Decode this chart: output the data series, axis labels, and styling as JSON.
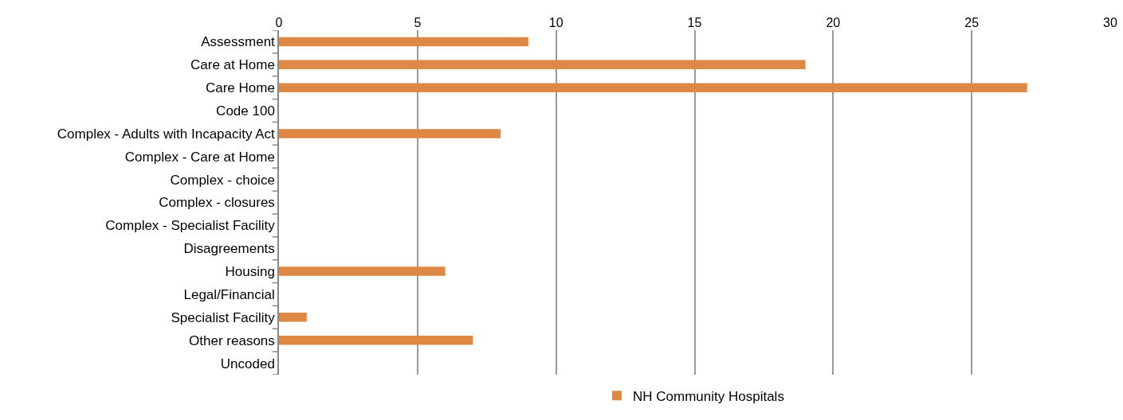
{
  "chart_data": {
    "type": "bar",
    "orientation": "horizontal",
    "categories": [
      "Assessment",
      "Care at Home",
      "Care Home",
      "Code 100",
      "Complex - Adults with Incapacity Act",
      "Complex - Care at Home",
      "Complex - choice",
      "Complex - closures",
      "Complex - Specialist Facility",
      "Disagreements",
      "Housing",
      "Legal/Financial",
      "Specialist Facility",
      "Other reasons",
      "Uncoded"
    ],
    "series": [
      {
        "name": "NH Community Hospitals",
        "color": "#dd8844",
        "values": [
          9,
          19,
          27,
          0,
          8,
          0,
          0,
          0,
          0,
          0,
          6,
          0,
          1,
          7,
          0
        ]
      }
    ],
    "xlim": [
      0,
      30
    ],
    "xticks": [
      0,
      5,
      10,
      15,
      20,
      25,
      30
    ],
    "grid": "x",
    "legend": "bottom"
  }
}
